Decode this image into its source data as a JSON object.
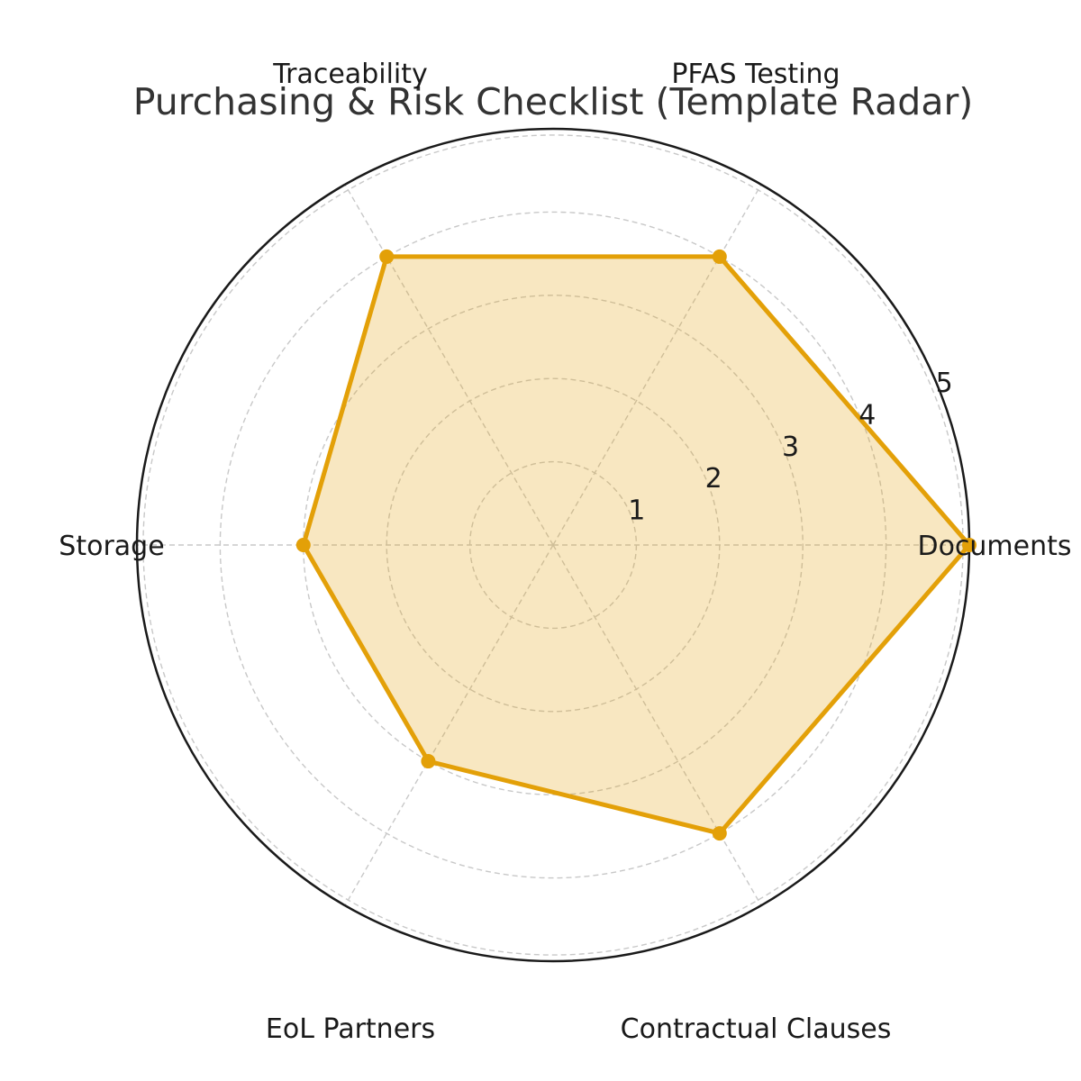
{
  "chart_data": {
    "type": "radar",
    "title": "Purchasing & Risk Checklist (Template Radar)",
    "axes": [
      "Documents",
      "PFAS Testing",
      "Traceability",
      "Storage",
      "EoL Partners",
      "Contractual Clauses"
    ],
    "series": [
      {
        "values": [
          5,
          4,
          4,
          3,
          3,
          4
        ],
        "color": "#E3A008"
      }
    ],
    "rlim": [
      0,
      5
    ],
    "rticks": [
      "1",
      "2",
      "3",
      "4",
      "5"
    ],
    "grid": true
  }
}
